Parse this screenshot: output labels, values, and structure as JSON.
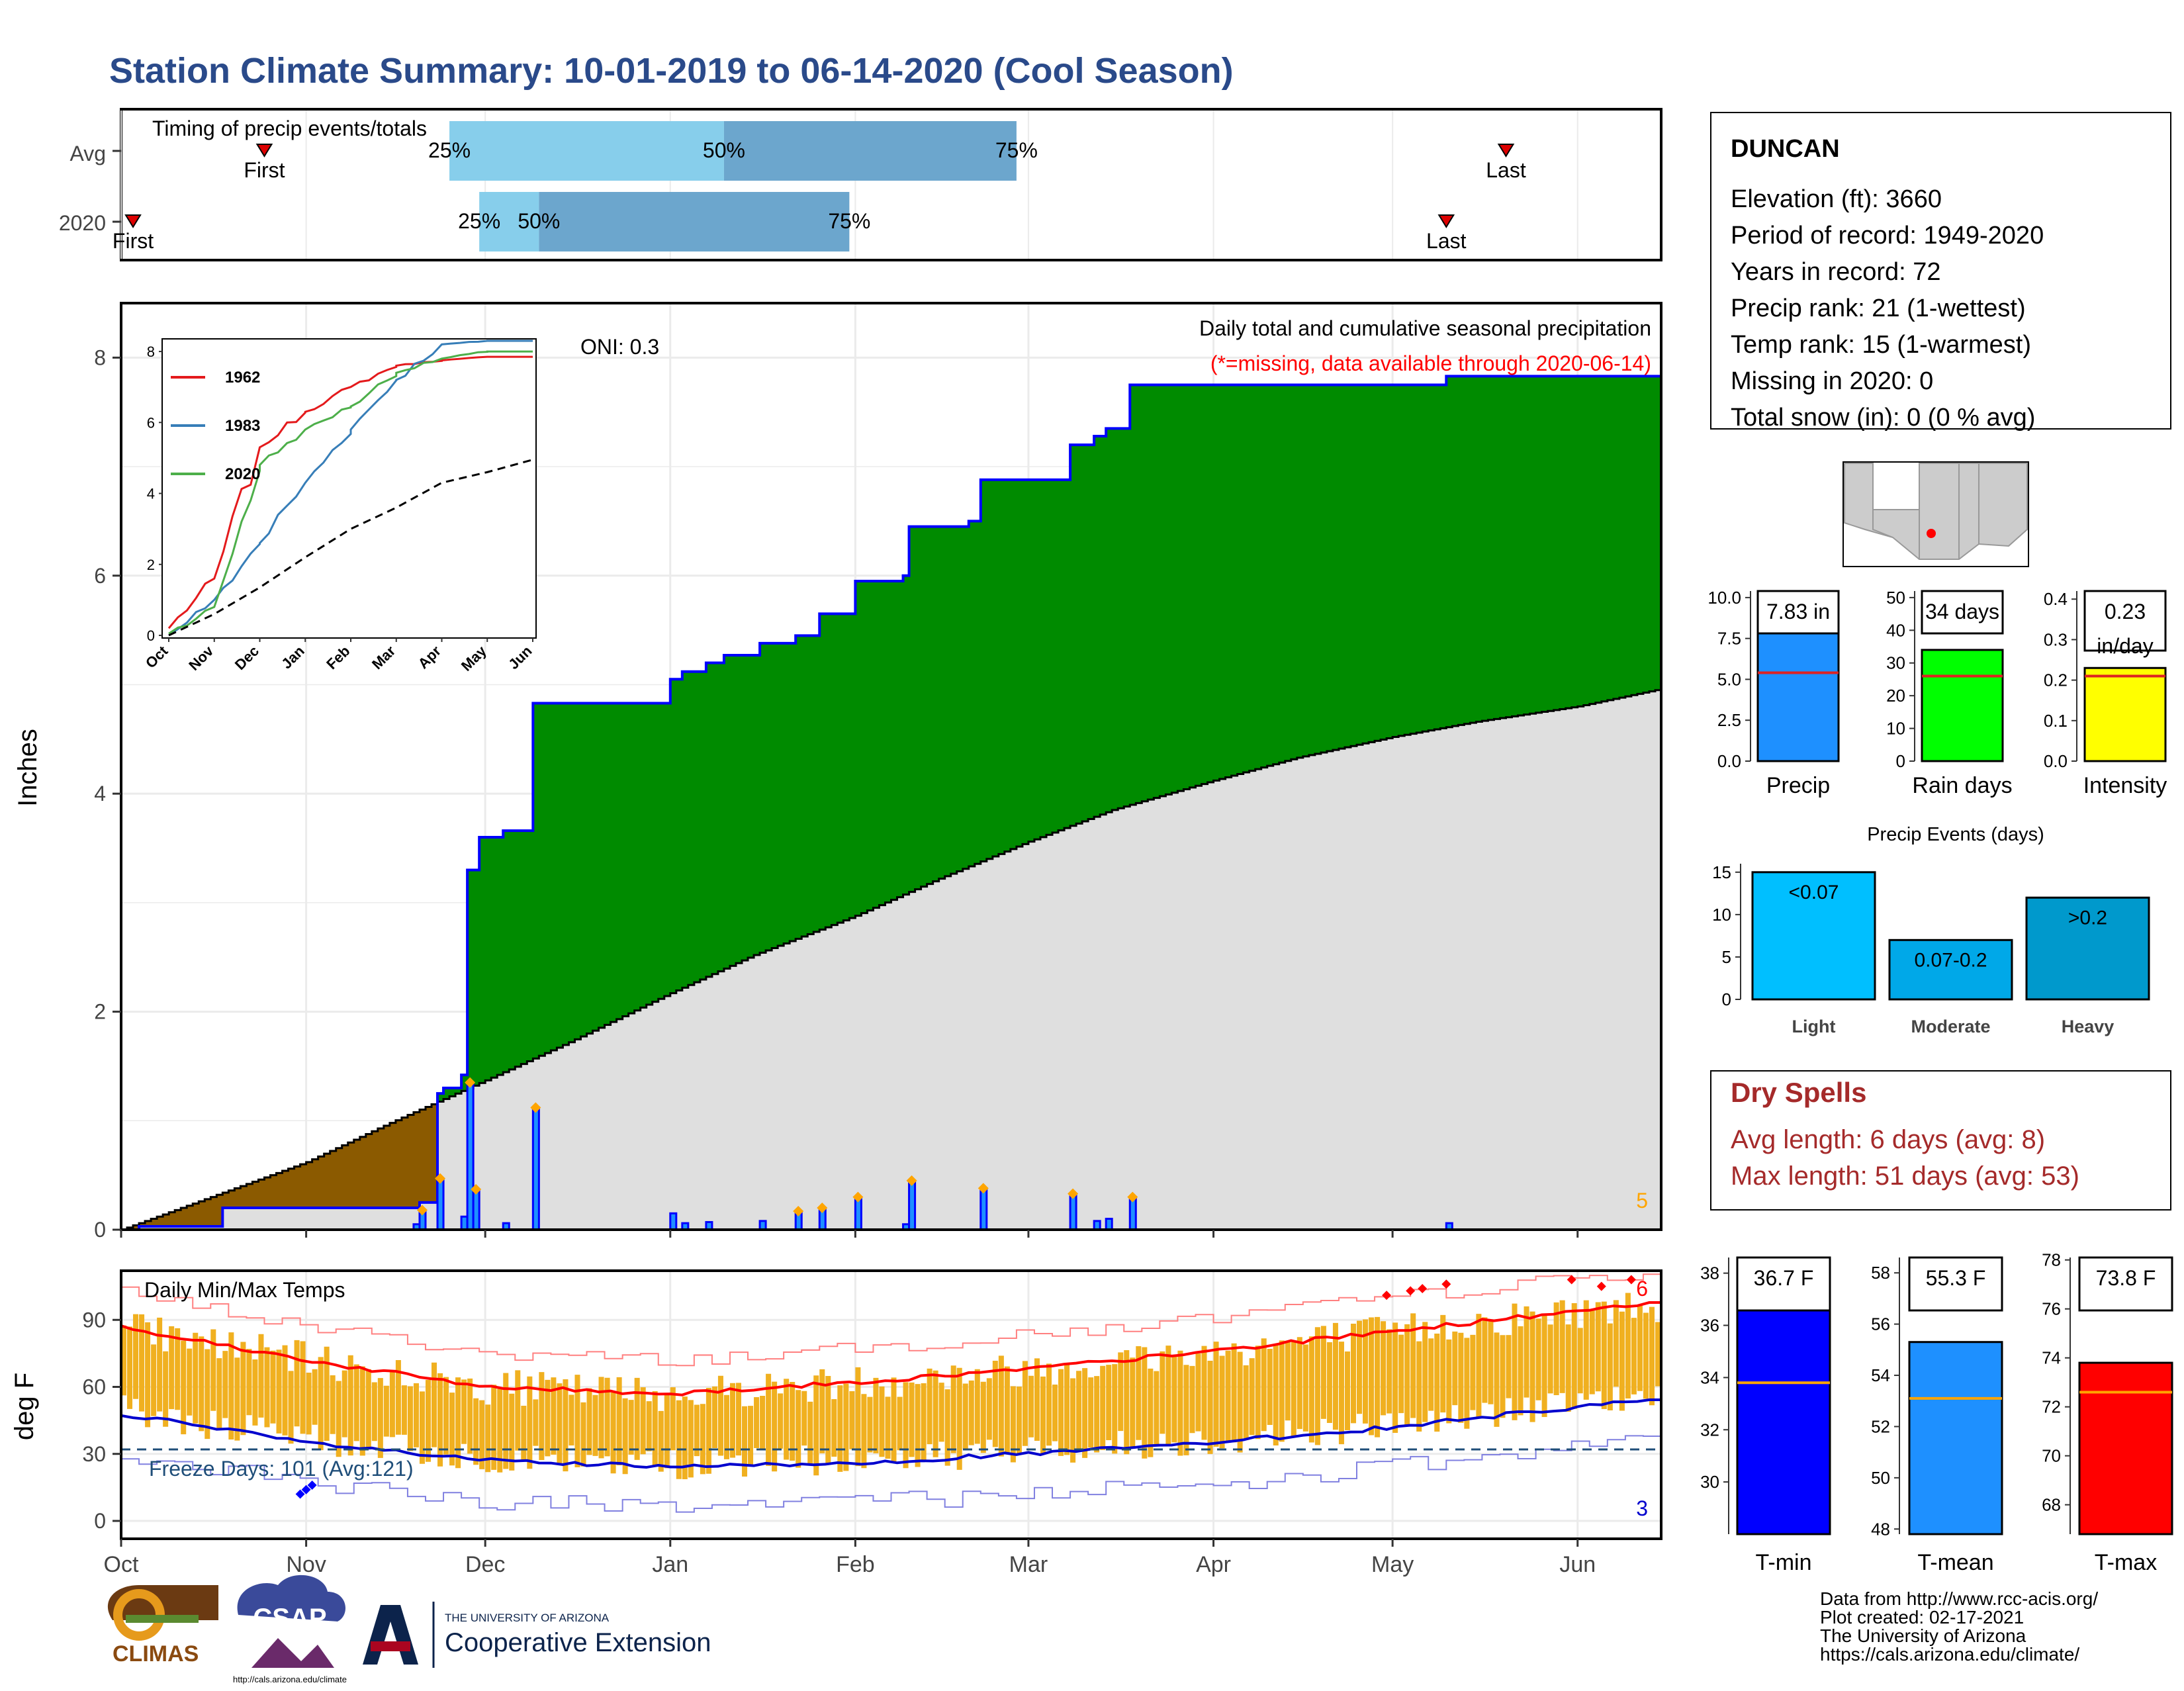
{
  "title": "Station Climate Summary: 10-01-2019 to 06-14-2020 (Cool Season)",
  "timing": {
    "label": "Timing of precip events/totals",
    "rows": [
      {
        "name": "Avg",
        "first_label": "First",
        "last_label": "Last",
        "first_date": "2019-10-25",
        "last_date": "2020-05-20",
        "p25": "2019-11-25",
        "p50": "2020-01-10",
        "p75": "2020-02-28"
      },
      {
        "name": "2020",
        "first_label": "First",
        "last_label": "Last",
        "first_date": "2019-10-03",
        "last_date": "2020-05-10",
        "p25": "2019-11-30",
        "p50": "2019-12-10",
        "p75": "2020-01-31"
      }
    ],
    "pct_labels": [
      "25%",
      "50%",
      "75%"
    ],
    "colors": {
      "light": "#87ceeb",
      "dark": "#6ca6cd",
      "marker": "#dd0000"
    }
  },
  "precip_panel": {
    "header": "Daily total and cumulative seasonal precipitation",
    "subheader": "(*=missing, data available through 2020-06-14)",
    "oni": "ONI: 0.3",
    "ylabel": "Inches",
    "corner_count": "5",
    "colors": {
      "surplus": "#008b00",
      "deficit": "#8b5a00",
      "normal": "#dfdfdf",
      "obs": "#0000ff",
      "daily": "#1e90ff",
      "diamond": "#ffa500",
      "subheader": "#ff0000"
    }
  },
  "inset": {
    "legend": [
      "1962",
      "1983",
      "2020"
    ],
    "colors": [
      "#e41a1c",
      "#377eb8",
      "#4daf4a"
    ],
    "month_labels": [
      "Oct",
      "Nov",
      "Dec",
      "Jan",
      "Feb",
      "Mar",
      "Apr",
      "May",
      "Jun"
    ],
    "ylim": [
      0,
      8.3
    ],
    "yticks": [
      0,
      2,
      4,
      6,
      8
    ]
  },
  "temp_panel": {
    "header": "Daily Min/Max Temps",
    "ylabel": "deg F",
    "freeze_label": "Freeze Days: 101 (Avg:121)",
    "count_hi": "6",
    "count_lo": "3",
    "ylim": [
      -8,
      112
    ],
    "yticks": [
      0,
      30,
      60,
      90
    ],
    "colors": {
      "bars": "#f0b020",
      "normal_max": "#ff0000",
      "normal_min": "#0000cd",
      "freeze": "#1f4e79"
    }
  },
  "x_month_labels": [
    "Oct",
    "Nov",
    "Dec",
    "Jan",
    "Feb",
    "Mar",
    "Apr",
    "May",
    "Jun"
  ],
  "station": {
    "name": "DUNCAN",
    "lines": [
      "Elevation (ft): 3660",
      "Period of record: 1949-2020",
      "Years in record: 72",
      "Precip rank: 21 (1-wettest)",
      "Temp rank: 15 (1-warmest)",
      "Missing in 2020: 0",
      "Total snow (in): 0 (0 % avg)"
    ]
  },
  "summary_bars": [
    {
      "label": "Precip",
      "value_label": "7.83 in",
      "value": 7.83,
      "avg": 5.4,
      "ylim": [
        0,
        10.4
      ],
      "ticks": [
        "0.0",
        "2.5",
        "5.0",
        "7.5",
        "10.0"
      ],
      "tick_vals": [
        0,
        2.5,
        5,
        7.5,
        10
      ],
      "color": "#1e90ff"
    },
    {
      "label": "Rain days",
      "value_label": "34 days",
      "value": 34,
      "avg": 26,
      "ylim": [
        0,
        52
      ],
      "ticks": [
        "0",
        "10",
        "20",
        "30",
        "40",
        "50"
      ],
      "tick_vals": [
        0,
        10,
        20,
        30,
        40,
        50
      ],
      "color": "#00ff00"
    },
    {
      "label": "Intensity",
      "value_label": "0.23 in/day",
      "value": 0.23,
      "avg": 0.21,
      "ylim": [
        0,
        0.42
      ],
      "ticks": [
        "0.0",
        "0.1",
        "0.2",
        "0.3",
        "0.4"
      ],
      "tick_vals": [
        0,
        0.1,
        0.2,
        0.3,
        0.4
      ],
      "color": "#ffff00"
    }
  ],
  "precip_events": {
    "title": "Precip Events (days)",
    "categories": [
      "Light",
      "Moderate",
      "Heavy"
    ],
    "bar_labels": [
      "<0.07",
      "0.07-0.2",
      ">0.2"
    ],
    "values": [
      15,
      7,
      12
    ],
    "ylim": [
      0,
      16
    ],
    "yticks": [
      0,
      5,
      10,
      15
    ],
    "colors": [
      "#00bfff",
      "#00a8e8",
      "#0099cc"
    ]
  },
  "dry_spells": {
    "title": "Dry Spells",
    "lines": [
      "Avg length: 6 days (avg: 8)",
      "Max length: 51 days (avg: 53)"
    ],
    "color": "#a52a2a"
  },
  "temp_bars": [
    {
      "label": "T-min",
      "value_label": "36.7 F",
      "value": 36.7,
      "avg": 33.8,
      "ylim": [
        28,
        38.6
      ],
      "ticks": [
        "30",
        "32",
        "34",
        "36",
        "38"
      ],
      "tick_vals": [
        30,
        32,
        34,
        36,
        38
      ],
      "color": "#0000ff"
    },
    {
      "label": "T-mean",
      "value_label": "55.3 F",
      "value": 55.3,
      "avg": 53.1,
      "ylim": [
        47.8,
        58.6
      ],
      "ticks": [
        "48",
        "50",
        "52",
        "54",
        "56",
        "58"
      ],
      "tick_vals": [
        48,
        50,
        52,
        54,
        56,
        58
      ],
      "color": "#1e90ff"
    },
    {
      "label": "T-max",
      "value_label": "73.8 F",
      "value": 73.8,
      "avg": 72.6,
      "ylim": [
        66.8,
        78.1
      ],
      "ticks": [
        "68",
        "70",
        "72",
        "74",
        "76",
        "78"
      ],
      "tick_vals": [
        68,
        70,
        72,
        74,
        76,
        78
      ],
      "color": "#ff0000"
    }
  ],
  "footer": {
    "lines": [
      "Data from http://www.rcc-acis.org/",
      "Plot created: 02-17-2021",
      "The University of Arizona",
      "https://cals.arizona.edu/climate/"
    ],
    "logos": {
      "climas": "CLIMAS",
      "csap": "CSAP",
      "csap_url": "http://cals.arizona.edu/climate",
      "ua_small": "THE UNIVERSITY OF ARIZONA",
      "ua_big": "Cooperative Extension"
    }
  },
  "chart_data": [
    {
      "type": "area",
      "title": "Daily total and cumulative seasonal precipitation",
      "ylabel": "Inches",
      "x_range": [
        "2019-10-01",
        "2020-06-14"
      ],
      "ylim": [
        0,
        8.5
      ],
      "yticks": [
        0,
        2,
        4,
        6,
        8
      ],
      "series": [
        {
          "name": "",
          "kind": "observed_cumulative",
          "steps": [
            [
              "2019-10-01",
              0
            ],
            [
              "2019-10-04",
              0.03
            ],
            [
              "2019-10-18",
              0.2
            ],
            [
              "2019-11-19",
              0.2
            ],
            [
              "2019-11-20",
              0.25
            ],
            [
              "2019-11-23",
              1.25
            ],
            [
              "2019-11-24",
              1.3
            ],
            [
              "2019-11-27",
              1.42
            ],
            [
              "2019-11-28",
              3.3
            ],
            [
              "2019-11-30",
              3.6
            ],
            [
              "2019-12-04",
              3.66
            ],
            [
              "2019-12-09",
              4.83
            ],
            [
              "2020-01-01",
              5.05
            ],
            [
              "2020-01-03",
              5.12
            ],
            [
              "2020-01-07",
              5.2
            ],
            [
              "2020-01-10",
              5.27
            ],
            [
              "2020-01-16",
              5.38
            ],
            [
              "2020-01-22",
              5.45
            ],
            [
              "2020-01-26",
              5.65
            ],
            [
              "2020-02-01",
              5.95
            ],
            [
              "2020-02-09",
              6.0
            ],
            [
              "2020-02-10",
              6.45
            ],
            [
              "2020-02-20",
              6.5
            ],
            [
              "2020-02-22",
              6.88
            ],
            [
              "2020-03-08",
              7.2
            ],
            [
              "2020-03-12",
              7.28
            ],
            [
              "2020-03-14",
              7.35
            ],
            [
              "2020-03-18",
              7.75
            ],
            [
              "2020-05-10",
              7.83
            ],
            [
              "2020-06-14",
              7.83
            ]
          ]
        },
        {
          "name": "",
          "kind": "normal_cumulative",
          "points": [
            [
              "2019-10-01",
              0
            ],
            [
              "2019-10-15",
              0.28
            ],
            [
              "2019-11-01",
              0.62
            ],
            [
              "2019-11-15",
              0.98
            ],
            [
              "2019-12-01",
              1.37
            ],
            [
              "2019-12-15",
              1.72
            ],
            [
              "2020-01-01",
              2.17
            ],
            [
              "2020-01-15",
              2.52
            ],
            [
              "2020-02-01",
              2.88
            ],
            [
              "2020-02-15",
              3.22
            ],
            [
              "2020-03-01",
              3.56
            ],
            [
              "2020-03-15",
              3.85
            ],
            [
              "2020-04-01",
              4.12
            ],
            [
              "2020-04-15",
              4.33
            ],
            [
              "2020-05-01",
              4.52
            ],
            [
              "2020-05-15",
              4.66
            ],
            [
              "2020-06-01",
              4.8
            ],
            [
              "2020-06-14",
              4.95
            ]
          ]
        },
        {
          "name": "",
          "kind": "daily_precip",
          "points": [
            [
              "2019-11-19",
              0.05
            ],
            [
              "2019-11-20",
              0.18
            ],
            [
              "2019-11-23",
              0.47
            ],
            [
              "2019-11-27",
              0.12
            ],
            [
              "2019-11-28",
              1.35
            ],
            [
              "2019-11-29",
              0.37
            ],
            [
              "2019-12-04",
              0.06
            ],
            [
              "2019-12-09",
              1.12
            ],
            [
              "2020-01-01",
              0.15
            ],
            [
              "2020-01-03",
              0.06
            ],
            [
              "2020-01-07",
              0.07
            ],
            [
              "2020-01-16",
              0.08
            ],
            [
              "2020-01-22",
              0.17
            ],
            [
              "2020-01-26",
              0.2
            ],
            [
              "2020-02-01",
              0.3
            ],
            [
              "2020-02-09",
              0.05
            ],
            [
              "2020-02-10",
              0.45
            ],
            [
              "2020-02-22",
              0.38
            ],
            [
              "2020-03-08",
              0.33
            ],
            [
              "2020-03-12",
              0.08
            ],
            [
              "2020-03-14",
              0.1
            ],
            [
              "2020-03-18",
              0.3
            ],
            [
              "2020-05-10",
              0.06
            ]
          ]
        }
      ]
    },
    {
      "type": "line",
      "title": "",
      "categories": [
        "Oct",
        "Nov",
        "Dec",
        "Jan",
        "Feb",
        "Mar",
        "Apr",
        "May",
        "Jun"
      ],
      "ylim": [
        0,
        8.3
      ],
      "series": [
        {
          "name": "1962",
          "values": [
            0.2,
            1.6,
            5.3,
            6.3,
            7.0,
            7.6,
            7.75,
            7.85,
            7.85
          ]
        },
        {
          "name": "1983",
          "values": [
            0.0,
            1.0,
            2.6,
            4.3,
            5.8,
            7.2,
            8.2,
            8.3,
            8.3
          ]
        },
        {
          "name": "2020",
          "values": [
            0.05,
            0.8,
            4.8,
            5.8,
            6.45,
            7.4,
            7.8,
            8.0,
            8.0
          ]
        },
        {
          "name": "",
          "kind": "normal",
          "values": [
            0.0,
            0.6,
            1.35,
            2.2,
            3.0,
            3.6,
            4.3,
            4.6,
            4.95
          ]
        }
      ]
    },
    {
      "type": "bar",
      "title": "Daily Min/Max Temps",
      "ylabel": "deg F",
      "x_range": [
        "2019-10-01",
        "2020-06-14"
      ],
      "ylim": [
        -8,
        112
      ],
      "series": [
        {
          "name": "",
          "kind": "normal_max",
          "monthly": [
            [
              "2019-10-01",
              87
            ],
            [
              "2019-11-01",
              72
            ],
            [
              "2019-12-01",
              60
            ],
            [
              "2020-01-01",
              57
            ],
            [
              "2020-02-01",
              62
            ],
            [
              "2020-03-01",
              68
            ],
            [
              "2020-04-01",
              76
            ],
            [
              "2020-05-01",
              85
            ],
            [
              "2020-06-01",
              94
            ],
            [
              "2020-06-14",
              97
            ]
          ]
        },
        {
          "name": "",
          "kind": "normal_min",
          "monthly": [
            [
              "2019-10-01",
              48
            ],
            [
              "2019-11-01",
              35
            ],
            [
              "2019-12-01",
              27
            ],
            [
              "2020-01-01",
              24
            ],
            [
              "2020-02-01",
              26
            ],
            [
              "2020-03-01",
              30
            ],
            [
              "2020-04-01",
              35
            ],
            [
              "2020-05-01",
              42
            ],
            [
              "2020-06-01",
              51
            ],
            [
              "2020-06-14",
              55
            ]
          ]
        }
      ],
      "freeze_line": 32
    },
    {
      "type": "bar",
      "title": "Precip Events (days)",
      "categories": [
        "Light",
        "Moderate",
        "Heavy"
      ],
      "values": [
        15,
        7,
        12
      ]
    }
  ]
}
